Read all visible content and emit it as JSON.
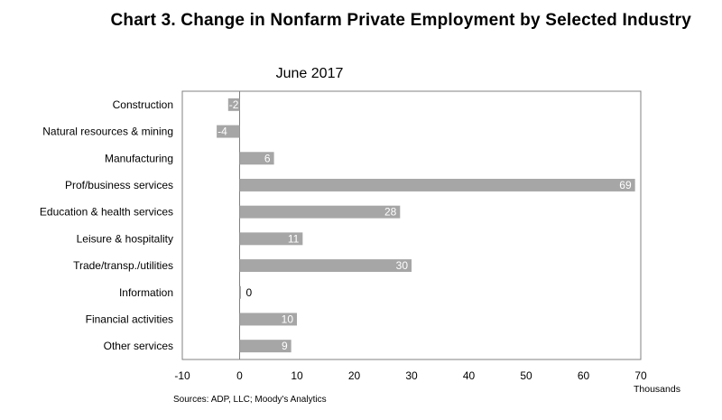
{
  "title": "Chart 3. Change in Nonfarm Private Employment by Selected Industry",
  "colors": {
    "bar": "#a6a6a6",
    "border": "#808080",
    "text": "#000000"
  },
  "chart_data": {
    "type": "bar",
    "orientation": "horizontal",
    "subtitle": "June 2017",
    "categories": [
      "Construction",
      "Natural resources & mining",
      "Manufacturing",
      "Prof/business services",
      "Education & health services",
      "Leisure & hospitality",
      "Trade/transp./utilities",
      "Information",
      "Financial activities",
      "Other services"
    ],
    "values": [
      -2,
      -4,
      6,
      69,
      28,
      11,
      30,
      0,
      10,
      9
    ],
    "data_labels": [
      "-2",
      "-4",
      "6",
      "69",
      "28",
      "11",
      "30",
      "0",
      "10",
      "9"
    ],
    "xlim": [
      -10,
      70
    ],
    "xticks": [
      -10,
      0,
      10,
      20,
      30,
      40,
      50,
      60,
      70
    ],
    "xlabel": "Thousands",
    "grid": false,
    "legend": "none",
    "source": "Sources: ADP, LLC; Moody's Analytics"
  }
}
